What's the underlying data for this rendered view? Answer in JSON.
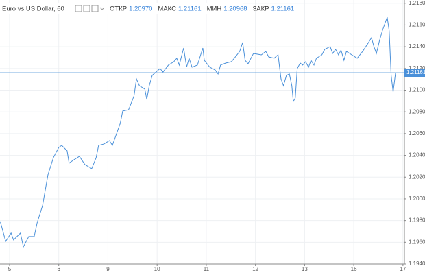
{
  "chart_data": {
    "type": "line",
    "title": "Euro vs US Dollar, 60",
    "ohlc": [
      {
        "label": "ОТКР",
        "value": "1.20970"
      },
      {
        "label": "МАКС",
        "value": "1.21161"
      },
      {
        "label": "МИН",
        "value": "1.20968"
      },
      {
        "label": "ЗАКР",
        "value": "1.21161"
      }
    ],
    "color": "#4a90d9",
    "grid": true,
    "price_line": 1.21161,
    "xlim": [
      -0.195,
      8.03
    ],
    "xticks": [
      {
        "value": 0,
        "label": "5"
      },
      {
        "value": 1,
        "label": "6"
      },
      {
        "value": 2,
        "label": "9"
      },
      {
        "value": 3,
        "label": "10"
      },
      {
        "value": 4,
        "label": "11"
      },
      {
        "value": 5,
        "label": "12"
      },
      {
        "value": 6,
        "label": "13"
      },
      {
        "value": 7,
        "label": "16"
      },
      {
        "value": 8,
        "label": "17"
      }
    ],
    "ylim": [
      1.194,
      1.2183
    ],
    "yticks": [
      {
        "value": 1.194,
        "label": "1.19400"
      },
      {
        "value": 1.196,
        "label": "1.19600"
      },
      {
        "value": 1.198,
        "label": "1.19800"
      },
      {
        "value": 1.2,
        "label": "1.20000"
      },
      {
        "value": 1.202,
        "label": "1.20200"
      },
      {
        "value": 1.204,
        "label": "1.20400"
      },
      {
        "value": 1.206,
        "label": "1.20600"
      },
      {
        "value": 1.208,
        "label": "1.20800"
      },
      {
        "value": 1.21,
        "label": "1.21000"
      },
      {
        "value": 1.212,
        "label": "1.21200"
      },
      {
        "value": 1.214,
        "label": "1.21400"
      },
      {
        "value": 1.216,
        "label": "1.21600"
      },
      {
        "value": 1.218,
        "label": "1.21800"
      }
    ],
    "x": [
      -0.19,
      -0.08,
      0.03,
      0.08,
      0.22,
      0.28,
      0.39,
      0.5,
      0.56,
      0.67,
      0.78,
      0.89,
      1.0,
      1.06,
      1.17,
      1.21,
      1.31,
      1.42,
      1.53,
      1.67,
      1.76,
      1.81,
      1.92,
      2.03,
      2.09,
      2.2,
      2.25,
      2.3,
      2.42,
      2.53,
      2.58,
      2.64,
      2.75,
      2.79,
      2.84,
      2.9,
      3.01,
      3.06,
      3.12,
      3.23,
      3.34,
      3.4,
      3.45,
      3.54,
      3.6,
      3.65,
      3.71,
      3.82,
      3.93,
      3.96,
      4.07,
      4.18,
      4.24,
      4.29,
      4.4,
      4.51,
      4.57,
      4.68,
      4.74,
      4.79,
      4.85,
      4.96,
      5.12,
      5.21,
      5.27,
      5.38,
      5.46,
      5.52,
      5.57,
      5.63,
      5.69,
      5.74,
      5.77,
      5.81,
      5.85,
      5.91,
      5.96,
      6.02,
      6.08,
      6.13,
      6.19,
      6.24,
      6.35,
      6.41,
      6.52,
      6.57,
      6.63,
      6.69,
      6.74,
      6.8,
      6.85,
      6.96,
      7.07,
      7.18,
      7.3,
      7.36,
      7.41,
      7.46,
      7.52,
      7.58,
      7.64,
      7.68,
      7.72,
      7.76,
      7.8,
      7.85
    ],
    "values": [
      1.19792,
      1.19609,
      1.19685,
      1.19622,
      1.19685,
      1.19558,
      1.19653,
      1.19653,
      1.19779,
      1.19937,
      1.20221,
      1.20379,
      1.20473,
      1.20492,
      1.20442,
      1.20328,
      1.2036,
      1.20391,
      1.20316,
      1.20278,
      1.20379,
      1.20492,
      1.20505,
      1.20536,
      1.20492,
      1.20631,
      1.20694,
      1.20808,
      1.2082,
      1.20947,
      1.21104,
      1.21041,
      1.2101,
      1.20915,
      1.21041,
      1.21136,
      1.2118,
      1.21199,
      1.21167,
      1.21231,
      1.21262,
      1.21294,
      1.21231,
      1.21388,
      1.21212,
      1.21294,
      1.21212,
      1.21231,
      1.21388,
      1.21275,
      1.21212,
      1.21186,
      1.21149,
      1.21231,
      1.2125,
      1.21262,
      1.21294,
      1.21357,
      1.21439,
      1.21275,
      1.21243,
      1.21338,
      1.21325,
      1.21357,
      1.21306,
      1.21294,
      1.21325,
      1.21104,
      1.21041,
      1.21136,
      1.21149,
      1.21041,
      1.20896,
      1.20928,
      1.21199,
      1.2125,
      1.21231,
      1.21262,
      1.21212,
      1.21275,
      1.21231,
      1.21294,
      1.21325,
      1.21376,
      1.21401,
      1.21338,
      1.21376,
      1.21325,
      1.21369,
      1.21275,
      1.21357,
      1.21325,
      1.21294,
      1.21357,
      1.21439,
      1.21483,
      1.21401,
      1.21338,
      1.21451,
      1.21546,
      1.21622,
      1.21672,
      1.21546,
      1.21136,
      1.20984,
      1.21161
    ]
  }
}
